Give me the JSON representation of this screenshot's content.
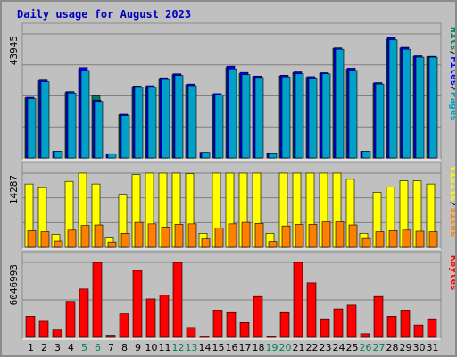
{
  "chart_data": {
    "type": "bar",
    "title": "Daily usage for August 2023",
    "categories": [
      "1",
      "2",
      "3",
      "4",
      "5",
      "6",
      "7",
      "8",
      "9",
      "10",
      "11",
      "12",
      "13",
      "14",
      "15",
      "16",
      "17",
      "18",
      "19",
      "20",
      "21",
      "22",
      "23",
      "24",
      "25",
      "26",
      "27",
      "28",
      "29",
      "30",
      "31"
    ],
    "weekend_days": [
      "5",
      "6",
      "12",
      "13",
      "19",
      "20",
      "26",
      "27"
    ],
    "grid": true,
    "panels": [
      {
        "id": "hits",
        "ymax_label": "43945",
        "ymax": 43945,
        "series": [
          {
            "name": "Pages",
            "color": "#00805a",
            "values": []
          },
          {
            "name": "Files",
            "color": "#0000ff",
            "values": []
          },
          {
            "name": "Hits",
            "color": "#00a0c8",
            "values": []
          }
        ],
        "side_labels": [
          {
            "text": "Hits",
            "color": "#00805a"
          },
          {
            "text": "/",
            "color": "#000000"
          },
          {
            "text": "Files",
            "color": "#0000ff"
          },
          {
            "text": "/",
            "color": "#000000"
          },
          {
            "text": "Pages",
            "color": "#00a0c8"
          }
        ]
      },
      {
        "id": "visits",
        "ymax_label": "14287",
        "ymax": 14287,
        "series": [
          {
            "name": "Visits",
            "color": "#ffff00",
            "values": []
          },
          {
            "name": "Sites",
            "color": "#ff8000",
            "values": []
          }
        ],
        "side_labels": [
          {
            "text": "Visits",
            "color": "#ffff00"
          },
          {
            "text": "/",
            "color": "#000000"
          },
          {
            "text": "Sites",
            "color": "#ff8000"
          }
        ]
      },
      {
        "id": "kbytes",
        "ymax_label": "6046993",
        "ymax": 6046993,
        "series": [
          {
            "name": "KBytes",
            "color": "#ff0000",
            "values": []
          }
        ],
        "side_labels": [
          {
            "text": "KBytes",
            "color": "#ff0000"
          }
        ]
      }
    ]
  }
}
